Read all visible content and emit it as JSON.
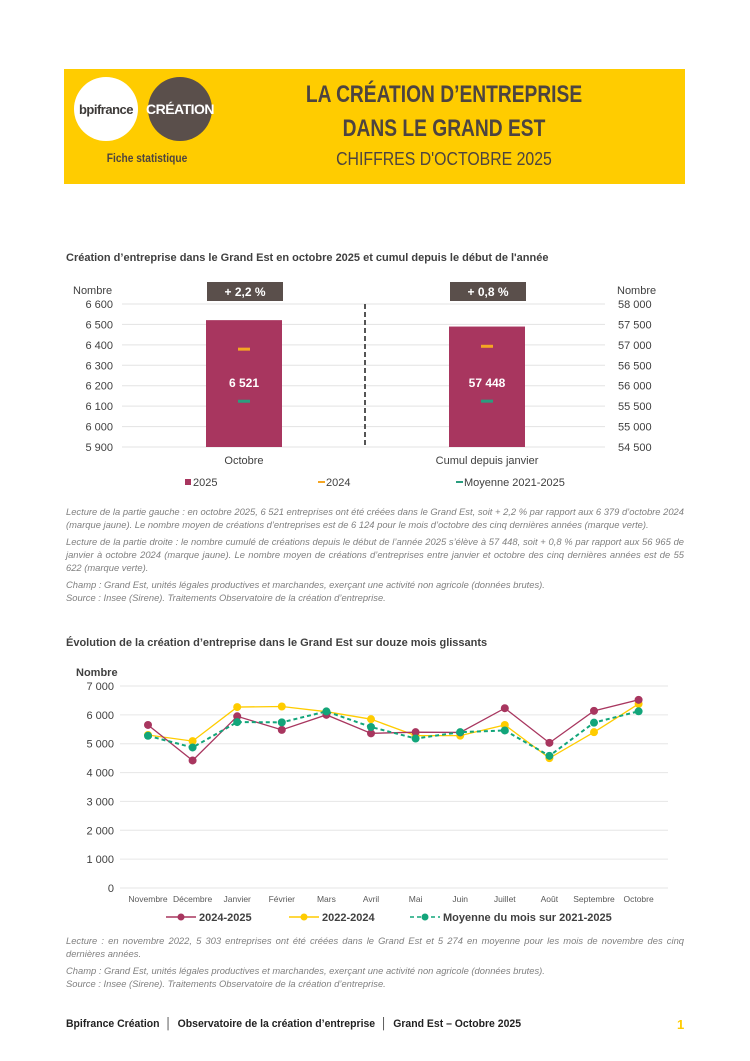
{
  "header": {
    "logo_bpi": "bpifrance",
    "logo_creation": "CRÉATION",
    "subtitle": "Fiche statistique",
    "title_line1": "LA CRÉATION D’ENTREPRISE",
    "title_line2": "DANS LE GRAND EST",
    "title_line3": "CHIFFRES D'OCTOBRE 2025"
  },
  "chart_data": [
    {
      "type": "bar",
      "title": "Création d’entreprise dans le Grand Est en octobre 2025 et cumul depuis le début de l'année",
      "categories": [
        "Octobre",
        "Cumul depuis janvier"
      ],
      "ylabel": "Nombre",
      "ylabel_right": "Nombre",
      "ylim": [
        5900,
        6600
      ],
      "yticks": [
        "6 600",
        "6 500",
        "6 400",
        "6 300",
        "6 200",
        "6 100",
        "6 000",
        "5 900"
      ],
      "ylim_right": [
        54500,
        58000
      ],
      "yticks_right": [
        "58 000",
        "57 500",
        "57 000",
        "56 500",
        "56 000",
        "55 500",
        "55 000",
        "54 500"
      ],
      "series": [
        {
          "name": "2025",
          "values": [
            6521,
            57448
          ],
          "labels": [
            "6 521",
            "57 448"
          ],
          "color": "#A8365F"
        },
        {
          "name": "2024",
          "values": [
            6379,
            56965
          ],
          "color": "#F5A623"
        },
        {
          "name": "Moyenne 2021-2025",
          "values": [
            6124,
            55622
          ],
          "color": "#2A9D7F"
        }
      ],
      "badges": [
        "+ 2,2 %",
        "+ 0,8 %"
      ],
      "badge_color": "#5a4f4b",
      "grid": true,
      "legend": "bottom"
    },
    {
      "type": "line",
      "title": "Évolution de la création d’entreprise dans le Grand Est sur douze mois glissants",
      "categories": [
        "Novembre",
        "Décembre",
        "Janvier",
        "Février",
        "Mars",
        "Avril",
        "Mai",
        "Juin",
        "Juillet",
        "Août",
        "Septembre",
        "Octobre"
      ],
      "ylabel": "Nombre",
      "ylim": [
        0,
        7000
      ],
      "yticks": [
        "0",
        "1 000",
        "2 000",
        "3 000",
        "4 000",
        "5 000",
        "6 000",
        "7 000"
      ],
      "series": [
        {
          "name": "2024-2025",
          "color": "#A8365F",
          "dashed": false,
          "values": [
            5650,
            4420,
            5950,
            5480,
            6000,
            5360,
            5400,
            5390,
            6230,
            5030,
            6140,
            6521
          ]
        },
        {
          "name": "2022-2024",
          "color": "#FFCC00",
          "dashed": false,
          "values": [
            5303,
            5090,
            6270,
            6290,
            6110,
            5850,
            5280,
            5280,
            5650,
            4500,
            5400,
            6379
          ]
        },
        {
          "name": "Moyenne du mois sur 2021-2025",
          "color": "#12A57A",
          "dashed": true,
          "values": [
            5274,
            4870,
            5750,
            5740,
            6120,
            5580,
            5180,
            5400,
            5460,
            4580,
            5730,
            6124
          ]
        }
      ],
      "grid": true,
      "legend": "bottom"
    }
  ],
  "notes1": [
    "Lecture de la partie gauche : en octobre 2025, 6 521 entreprises ont été créées dans le Grand Est, soit + 2,2 % par rapport aux 6 379 d’octobre 2024 (marque jaune). Le nombre moyen de créations d’entreprises est de 6 124 pour le mois d’octobre des cinq dernières années (marque verte).",
    "Lecture de la partie droite : le nombre cumulé de créations depuis le début de l’année 2025 s’élève à 57 448, soit + 0,8 % par rapport aux 56 965 de janvier à octobre 2024 (marque jaune). Le nombre moyen de créations d’entreprises entre janvier et octobre des cinq dernières années est de 55 622 (marque verte).",
    "Champ : Grand Est, unités légales productives et marchandes, exerçant une activité non agricole (données brutes).",
    "Source : Insee (Sirene). Traitements Observatoire de la création d’entreprise."
  ],
  "notes2": [
    "Lecture : en novembre 2022, 5 303 entreprises ont été créées dans le Grand Est et 5 274 en moyenne pour les mois de novembre des cinq dernières années.",
    "Champ : Grand Est, unités légales productives et marchandes, exerçant une activité non agricole (données brutes).",
    "Source : Insee (Sirene). Traitements Observatoire de la création d’entreprise."
  ],
  "footer": {
    "text": "Bpifrance Création  │  Observatoire de la création d’entreprise  │  Grand Est – Octobre 2025",
    "page": "1"
  }
}
